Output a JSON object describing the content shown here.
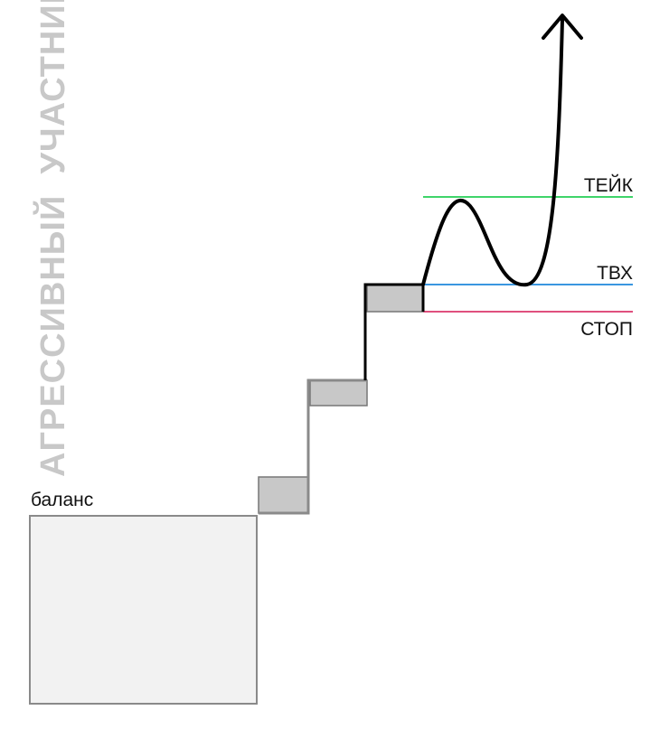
{
  "title": "АГРЕССИВНЫЙ  УЧАСТНИК",
  "balance_label": "баланс",
  "levels": {
    "take_label": "ТЕЙК",
    "entry_label": "ТВХ",
    "stop_label": "СТОП"
  },
  "colors": {
    "title": "#c8c8c8",
    "take": "#3fd46a",
    "entry": "#3a97e0",
    "stop": "#e0507e",
    "balance_fill": "#f2f2f2",
    "balance_stroke": "#8a8a8a",
    "step_fill": "#c8c8c8",
    "step_stroke": "#777777",
    "path_black": "#000000",
    "path_gray": "#8a8a8a"
  },
  "icons": {
    "arrow": "arrow-up-icon"
  }
}
